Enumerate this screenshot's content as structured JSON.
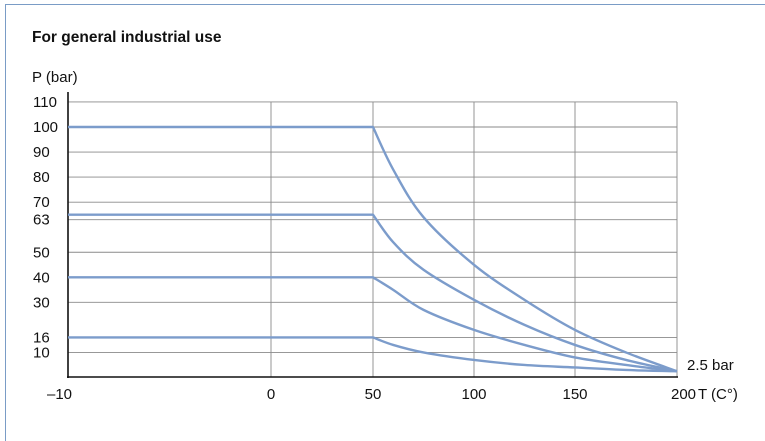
{
  "title": "For general industrial use",
  "chart_data": {
    "type": "line",
    "title": "For general industrial use",
    "ylabel": "P (bar)",
    "xlabel": "T (C°)",
    "x_ticks": [
      -10,
      0,
      50,
      100,
      150,
      200
    ],
    "x_tick_labels": [
      "–10",
      "0",
      "50",
      "100",
      "150",
      "200"
    ],
    "y_ticks": [
      10,
      16,
      30,
      40,
      50,
      63,
      70,
      80,
      90,
      100,
      110
    ],
    "y_tick_labels": [
      "10",
      "16",
      "30",
      "40",
      "50",
      "63",
      "70",
      "80",
      "90",
      "100",
      "110"
    ],
    "grid": true,
    "annotation": "2.5 bar",
    "line_color": "#7c9ccb",
    "series": [
      {
        "values": [
          [
            -10,
            100
          ],
          [
            50,
            100
          ],
          [
            60,
            83
          ],
          [
            75,
            64
          ],
          [
            100,
            45
          ],
          [
            125,
            31
          ],
          [
            150,
            19
          ],
          [
            175,
            10
          ],
          [
            200,
            2.5
          ]
        ]
      },
      {
        "values": [
          [
            -10,
            65
          ],
          [
            50,
            65
          ],
          [
            60,
            54
          ],
          [
            75,
            43
          ],
          [
            100,
            31
          ],
          [
            125,
            21
          ],
          [
            150,
            13
          ],
          [
            175,
            7
          ],
          [
            200,
            2.5
          ]
        ]
      },
      {
        "values": [
          [
            -10,
            40
          ],
          [
            50,
            40
          ],
          [
            60,
            35
          ],
          [
            75,
            27
          ],
          [
            100,
            19
          ],
          [
            125,
            13
          ],
          [
            150,
            8
          ],
          [
            175,
            5
          ],
          [
            200,
            2.5
          ]
        ]
      },
      {
        "values": [
          [
            -10,
            16
          ],
          [
            50,
            16
          ],
          [
            60,
            13
          ],
          [
            75,
            10
          ],
          [
            100,
            7
          ],
          [
            125,
            5
          ],
          [
            150,
            4
          ],
          [
            175,
            3
          ],
          [
            200,
            2.5
          ]
        ]
      }
    ]
  }
}
